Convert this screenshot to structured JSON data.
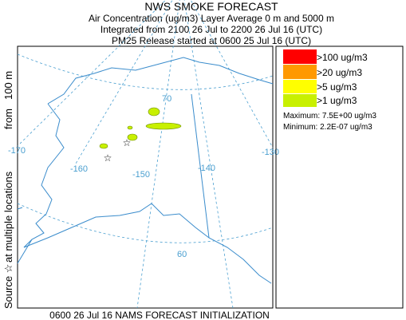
{
  "header": {
    "title": "NWS SMOKE FORECAST",
    "line1": "Air Concentration (ug/m3) Layer Average    0 m and  5000 m",
    "line2": "Integrated from 2100 26 Jul to 2200 26 Jul 16 (UTC)",
    "line3": "PM25 Release started at 0600 25 Jul 16 (UTC)"
  },
  "side_label": {
    "source": "Source ☆",
    "locations": "at multiple locations",
    "from": "from",
    "height": "100 m"
  },
  "map": {
    "labels": [
      "70",
      "-170",
      "-160",
      "-150",
      "-140",
      "-130",
      "60"
    ]
  },
  "legend": {
    "entries": [
      ">100 ug/m3",
      ">20 ug/m3",
      ">5 ug/m3",
      ">1 ug/m3"
    ],
    "maximum": "Maximum: 7.5E+00 ug/m3",
    "minimum": "Minimum: 2.2E-07 ug/m3"
  },
  "footer": "0600 26 Jul 16 NAMS FORECAST INITIALIZATION"
}
